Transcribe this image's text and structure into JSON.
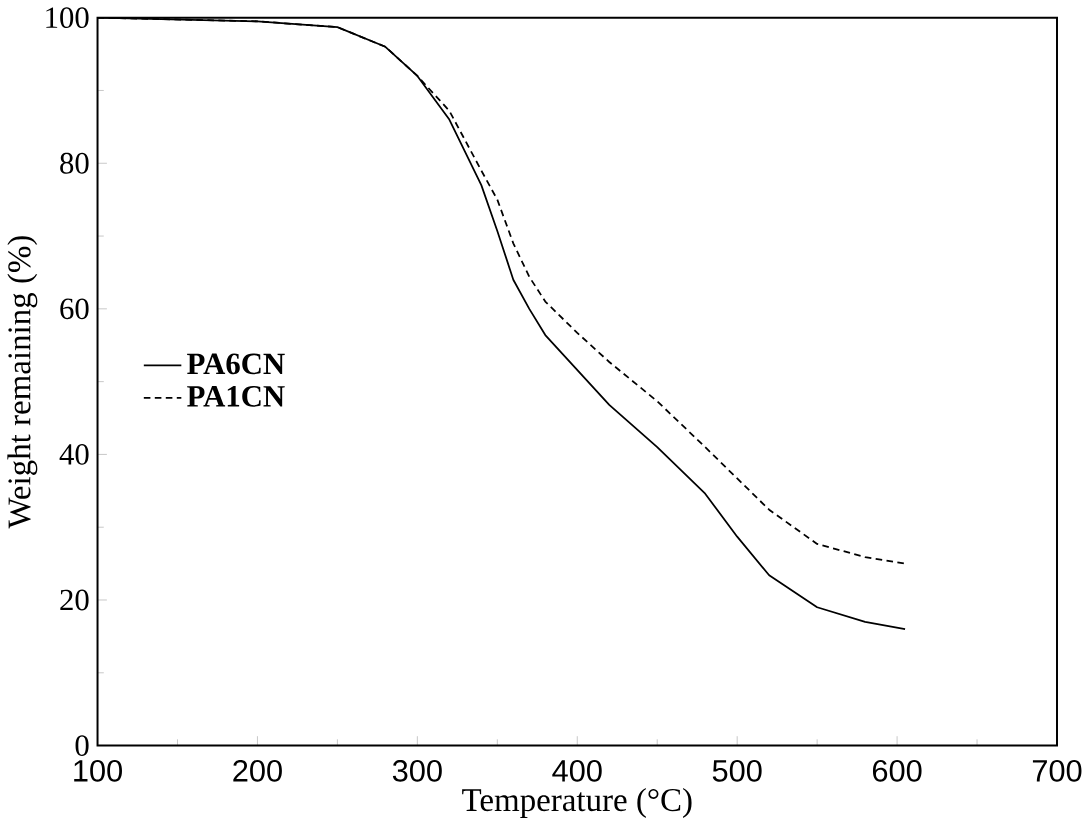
{
  "chart_data": {
    "type": "line",
    "xlabel": "Temperature (°C)",
    "ylabel": "Weight remaining (%)",
    "xlim": [
      100,
      700
    ],
    "ylim": [
      0,
      100
    ],
    "xticks": [
      100,
      200,
      300,
      400,
      500,
      600,
      700
    ],
    "yticks": [
      0,
      20,
      40,
      60,
      80,
      100
    ],
    "legend": "left",
    "series": [
      {
        "name": "PA6CN",
        "color": "#000000",
        "line_style": "solid",
        "x": [
          100,
          200,
          250,
          280,
          300,
          320,
          340,
          350,
          360,
          370,
          380,
          400,
          420,
          450,
          480,
          500,
          520,
          550,
          580,
          605
        ],
        "values": [
          100,
          99.5,
          98.7,
          96,
          92,
          86,
          77,
          70.7,
          64,
          60,
          56.4,
          51.6,
          46.8,
          41,
          34.6,
          28.7,
          23.4,
          19,
          17,
          16
        ]
      },
      {
        "name": "PA1CN",
        "color": "#000000",
        "line_style": "dashed",
        "x": [
          100,
          200,
          250,
          280,
          300,
          320,
          340,
          350,
          360,
          370,
          380,
          400,
          420,
          450,
          480,
          500,
          520,
          550,
          580,
          605
        ],
        "values": [
          100,
          99.5,
          98.7,
          96,
          92,
          87.2,
          79,
          75,
          69,
          64.4,
          61,
          56.7,
          52.7,
          47.3,
          41,
          36.7,
          32.4,
          27.7,
          25.9,
          25
        ]
      }
    ]
  }
}
